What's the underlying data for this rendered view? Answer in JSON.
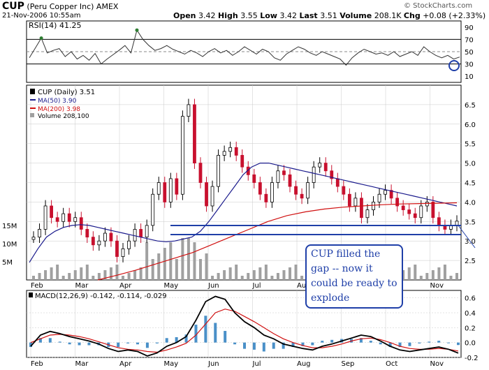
{
  "header": {
    "ticker": "CUP",
    "company": "(Peru Copper Inc)",
    "exchange": "AMEX",
    "datetime": "21-Nov-2006 10:55am",
    "open_label": "Open",
    "open": "3.42",
    "high_label": "High",
    "high": "3.55",
    "low_label": "Low",
    "low": "3.42",
    "last_label": "Last",
    "last": "3.51",
    "volume_label": "Volume",
    "volume": "208.1K",
    "chg_label": "Chg",
    "chg": "+0.08 (+2.33%)",
    "credit": "© StockCharts.com"
  },
  "annotation": {
    "text": "CUP filled the gap -- now it could be ready to explode"
  },
  "colors": {
    "price_up": "#000000",
    "price_down": "#c8102e",
    "ma50": "#1a1a8c",
    "ma200": "#d01010",
    "volume": "#a0a0a0",
    "macd_line": "#000000",
    "macd_signal": "#d01010",
    "macd_hist": "#4a90c8",
    "annotation": "#1f3fa8",
    "grid": "#c8c8c8"
  },
  "chart_data": [
    {
      "type": "line",
      "title": "RSI(14) 41.25",
      "ylim": [
        0,
        100
      ],
      "yticks": [
        "90",
        "70",
        "50",
        "30",
        "10"
      ],
      "reference_lines": [
        70,
        50,
        30
      ],
      "series": [
        {
          "name": "RSI(14)",
          "values": [
            40,
            56,
            72,
            48,
            52,
            55,
            42,
            50,
            38,
            44,
            36,
            47,
            30,
            38,
            45,
            52,
            60,
            48,
            85,
            70,
            60,
            52,
            55,
            60,
            54,
            50,
            46,
            52,
            48,
            42,
            50,
            55,
            48,
            52,
            44,
            50,
            58,
            52,
            46,
            54,
            50,
            40,
            36,
            46,
            52,
            58,
            54,
            48,
            44,
            50,
            46,
            42,
            38,
            28,
            40,
            48,
            54,
            50,
            46,
            48,
            44,
            50,
            42,
            46,
            50,
            44,
            58,
            50,
            44,
            40,
            44,
            38,
            41.25
          ]
        }
      ]
    },
    {
      "type": "line",
      "title": "CUP (Daily) 3.51",
      "x_labels": [
        "Feb",
        "Mar",
        "Apr",
        "May",
        "Jun",
        "Jul",
        "Aug",
        "Sep",
        "Oct",
        "Nov"
      ],
      "ylim": [
        2.0,
        7.0
      ],
      "yticks": [
        "6.5",
        "6.0",
        "5.5",
        "5.0",
        "4.5",
        "4.0",
        "3.5",
        "3.0",
        "2.5"
      ],
      "volume_ticks": [
        "15M",
        "10M",
        "5M"
      ],
      "legend": [
        "MA(50) 3.90",
        "MA(200) 3.98",
        "Volume 208,100"
      ],
      "series": [
        {
          "name": "CUP (Daily)",
          "values": [
            3.1,
            3.3,
            3.9,
            3.6,
            3.5,
            3.7,
            3.5,
            3.6,
            3.3,
            3.1,
            2.9,
            3.0,
            3.2,
            3.0,
            2.6,
            2.8,
            3.0,
            3.3,
            3.1,
            3.4,
            4.2,
            4.5,
            4.0,
            4.6,
            4.2,
            6.2,
            6.5,
            5.0,
            4.5,
            3.9,
            4.4,
            5.2,
            5.3,
            5.4,
            5.2,
            4.9,
            4.7,
            4.5,
            4.2,
            4.0,
            4.5,
            4.8,
            4.7,
            4.4,
            4.2,
            4.1,
            4.5,
            4.9,
            5.0,
            4.8,
            4.6,
            4.4,
            4.2,
            3.9,
            4.1,
            3.6,
            3.8,
            4.0,
            4.2,
            4.3,
            4.1,
            3.9,
            3.8,
            3.7,
            3.6,
            3.9,
            4.0,
            3.6,
            3.4,
            3.3,
            3.4,
            3.51
          ]
        },
        {
          "name": "MA(50)",
          "values": [
            2.45,
            2.8,
            3.1,
            3.25,
            3.35,
            3.4,
            3.42,
            3.4,
            3.35,
            3.3,
            3.25,
            3.2,
            3.15,
            3.1,
            3.05,
            3.0,
            2.98,
            3.0,
            3.05,
            3.1,
            3.25,
            3.5,
            3.8,
            4.1,
            4.4,
            4.7,
            4.9,
            5.0,
            5.0,
            4.95,
            4.9,
            4.85,
            4.8,
            4.75,
            4.7,
            4.65,
            4.6,
            4.55,
            4.5,
            4.45,
            4.4,
            4.35,
            4.3,
            4.25,
            4.2,
            4.15,
            4.1,
            4.05,
            4.0,
            3.95,
            3.9
          ]
        },
        {
          "name": "MA(200)",
          "values": [
            2.0,
            2.12,
            2.25,
            2.4,
            2.55,
            2.7,
            2.9,
            3.1,
            3.3,
            3.5,
            3.65,
            3.75,
            3.82,
            3.87,
            3.9,
            3.93,
            3.95,
            3.96,
            3.97,
            3.98
          ]
        }
      ]
    },
    {
      "type": "line",
      "title": "MACD(12,26,9) -0.142, -0.114, -0.029",
      "ylim": [
        -0.2,
        0.7
      ],
      "yticks": [
        "0.6",
        "0.4",
        "0.2",
        "0.0",
        "-0.2"
      ],
      "series": [
        {
          "name": "MACD(12,26,9)",
          "values": [
            -0.05,
            0.1,
            0.15,
            0.12,
            0.08,
            0.05,
            0.02,
            -0.02,
            -0.08,
            -0.12,
            -0.1,
            -0.12,
            -0.18,
            -0.14,
            -0.05,
            0.0,
            0.08,
            0.3,
            0.55,
            0.62,
            0.58,
            0.4,
            0.28,
            0.2,
            0.1,
            0.05,
            -0.02,
            -0.05,
            -0.08,
            -0.1,
            -0.05,
            -0.02,
            0.02,
            0.06,
            0.1,
            0.08,
            0.02,
            -0.05,
            -0.1,
            -0.12,
            -0.1,
            -0.08,
            -0.06,
            -0.09,
            -0.142
          ]
        },
        {
          "name": "signal",
          "values": [
            0.0,
            0.05,
            0.1,
            0.11,
            0.1,
            0.08,
            0.05,
            0.01,
            -0.03,
            -0.07,
            -0.09,
            -0.1,
            -0.12,
            -0.13,
            -0.1,
            -0.06,
            -0.01,
            0.1,
            0.25,
            0.4,
            0.45,
            0.42,
            0.35,
            0.28,
            0.2,
            0.12,
            0.05,
            0.0,
            -0.04,
            -0.07,
            -0.07,
            -0.05,
            -0.02,
            0.02,
            0.05,
            0.06,
            0.04,
            0.0,
            -0.05,
            -0.08,
            -0.09,
            -0.09,
            -0.08,
            -0.09,
            -0.114
          ]
        }
      ]
    }
  ]
}
